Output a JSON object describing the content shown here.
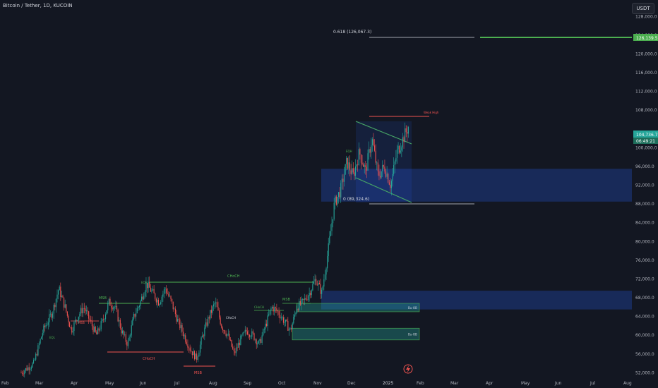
{
  "header": {
    "symbol_title": "Bitcoin / Tether, 1D, KUCOIN",
    "currency_button": "USDT"
  },
  "chart_data": {
    "type": "candlestick",
    "title": "Bitcoin / Tether, 1D, KUCOIN",
    "ylim": [
      51000,
      130000
    ],
    "y_ticks": [
      "52,000.0",
      "56,000.0",
      "60,000.0",
      "64,000.0",
      "68,000.0",
      "72,000.0",
      "76,000.0",
      "80,000.0",
      "84,000.0",
      "88,000.0",
      "92,000.0",
      "96,000.0",
      "100,000.0",
      "108,000.0",
      "112,000.0",
      "116,000.0",
      "120,000.0",
      "124,000.0",
      "128,000.0"
    ],
    "x_ticks": [
      "Feb",
      "Mar",
      "Apr",
      "May",
      "Jun",
      "Jul",
      "Aug",
      "Sep",
      "Oct",
      "Nov",
      "Dec",
      "2025",
      "Feb",
      "Mar",
      "Apr",
      "May",
      "Jun",
      "Jul",
      "Aug"
    ],
    "last_price_label": "104,736.7",
    "countdown_label": "06:49:21",
    "target_price_label": "126,139.5",
    "up_color": "#26a69a",
    "down_color": "#ef5350",
    "price_path": [
      [
        0,
        52000
      ],
      [
        4,
        54000
      ],
      [
        7,
        61000
      ],
      [
        10,
        65000
      ],
      [
        12,
        70000
      ],
      [
        14,
        66000
      ],
      [
        16,
        61000
      ],
      [
        18,
        64000
      ],
      [
        20,
        66000
      ],
      [
        22,
        63000
      ],
      [
        24,
        60000
      ],
      [
        26,
        63000
      ],
      [
        28,
        67000
      ],
      [
        30,
        66000
      ],
      [
        32,
        61000
      ],
      [
        34,
        58000
      ],
      [
        36,
        64000
      ],
      [
        38,
        67000
      ],
      [
        40,
        71000
      ],
      [
        42,
        69000
      ],
      [
        44,
        67000
      ],
      [
        46,
        70000
      ],
      [
        48,
        67000
      ],
      [
        50,
        63000
      ],
      [
        52,
        60000
      ],
      [
        54,
        57000
      ],
      [
        56,
        55000
      ],
      [
        58,
        60000
      ],
      [
        60,
        64000
      ],
      [
        62,
        67000
      ],
      [
        64,
        62000
      ],
      [
        66,
        60000
      ],
      [
        68,
        56000
      ],
      [
        70,
        59000
      ],
      [
        72,
        61000
      ],
      [
        74,
        60000
      ],
      [
        76,
        58000
      ],
      [
        78,
        62000
      ],
      [
        80,
        66000
      ],
      [
        82,
        65000
      ],
      [
        84,
        63000
      ],
      [
        86,
        61000
      ],
      [
        88,
        66000
      ],
      [
        90,
        67000
      ],
      [
        92,
        69000
      ],
      [
        94,
        72000
      ],
      [
        96,
        69000
      ],
      [
        98,
        78000
      ],
      [
        100,
        88000
      ],
      [
        102,
        91000
      ],
      [
        104,
        97000
      ],
      [
        106,
        94000
      ],
      [
        108,
        99000
      ],
      [
        110,
        95000
      ],
      [
        112,
        102000
      ],
      [
        114,
        94000
      ],
      [
        116,
        96000
      ],
      [
        118,
        92000
      ],
      [
        120,
        99000
      ],
      [
        122,
        102000
      ],
      [
        124,
        105000
      ]
    ],
    "fib_levels": [
      {
        "label": "0.618 (126,067.3)",
        "value": 126067.3
      },
      {
        "label": "0 (89,324.6)",
        "value": 89324.6
      }
    ],
    "annotations": [
      "CHoCH",
      "CHoCH",
      "MSB",
      "MSB",
      "MSB",
      "CHoCH",
      "MSB",
      "CHoCH",
      "CHoCH",
      "Weak High",
      "Bu-OB",
      "Bu-OB",
      "EQL",
      "EQH",
      "EQH"
    ],
    "zones": [
      {
        "kind": "order-block",
        "from": 88500,
        "to": 95500
      },
      {
        "kind": "order-block",
        "from": 65500,
        "to": 69500
      },
      {
        "kind": "bullish-order-block",
        "label": "Bu-OB",
        "from": 65000,
        "to": 66800
      },
      {
        "kind": "bullish-order-block",
        "label": "Bu-OB",
        "from": 59000,
        "to": 61500
      }
    ]
  }
}
